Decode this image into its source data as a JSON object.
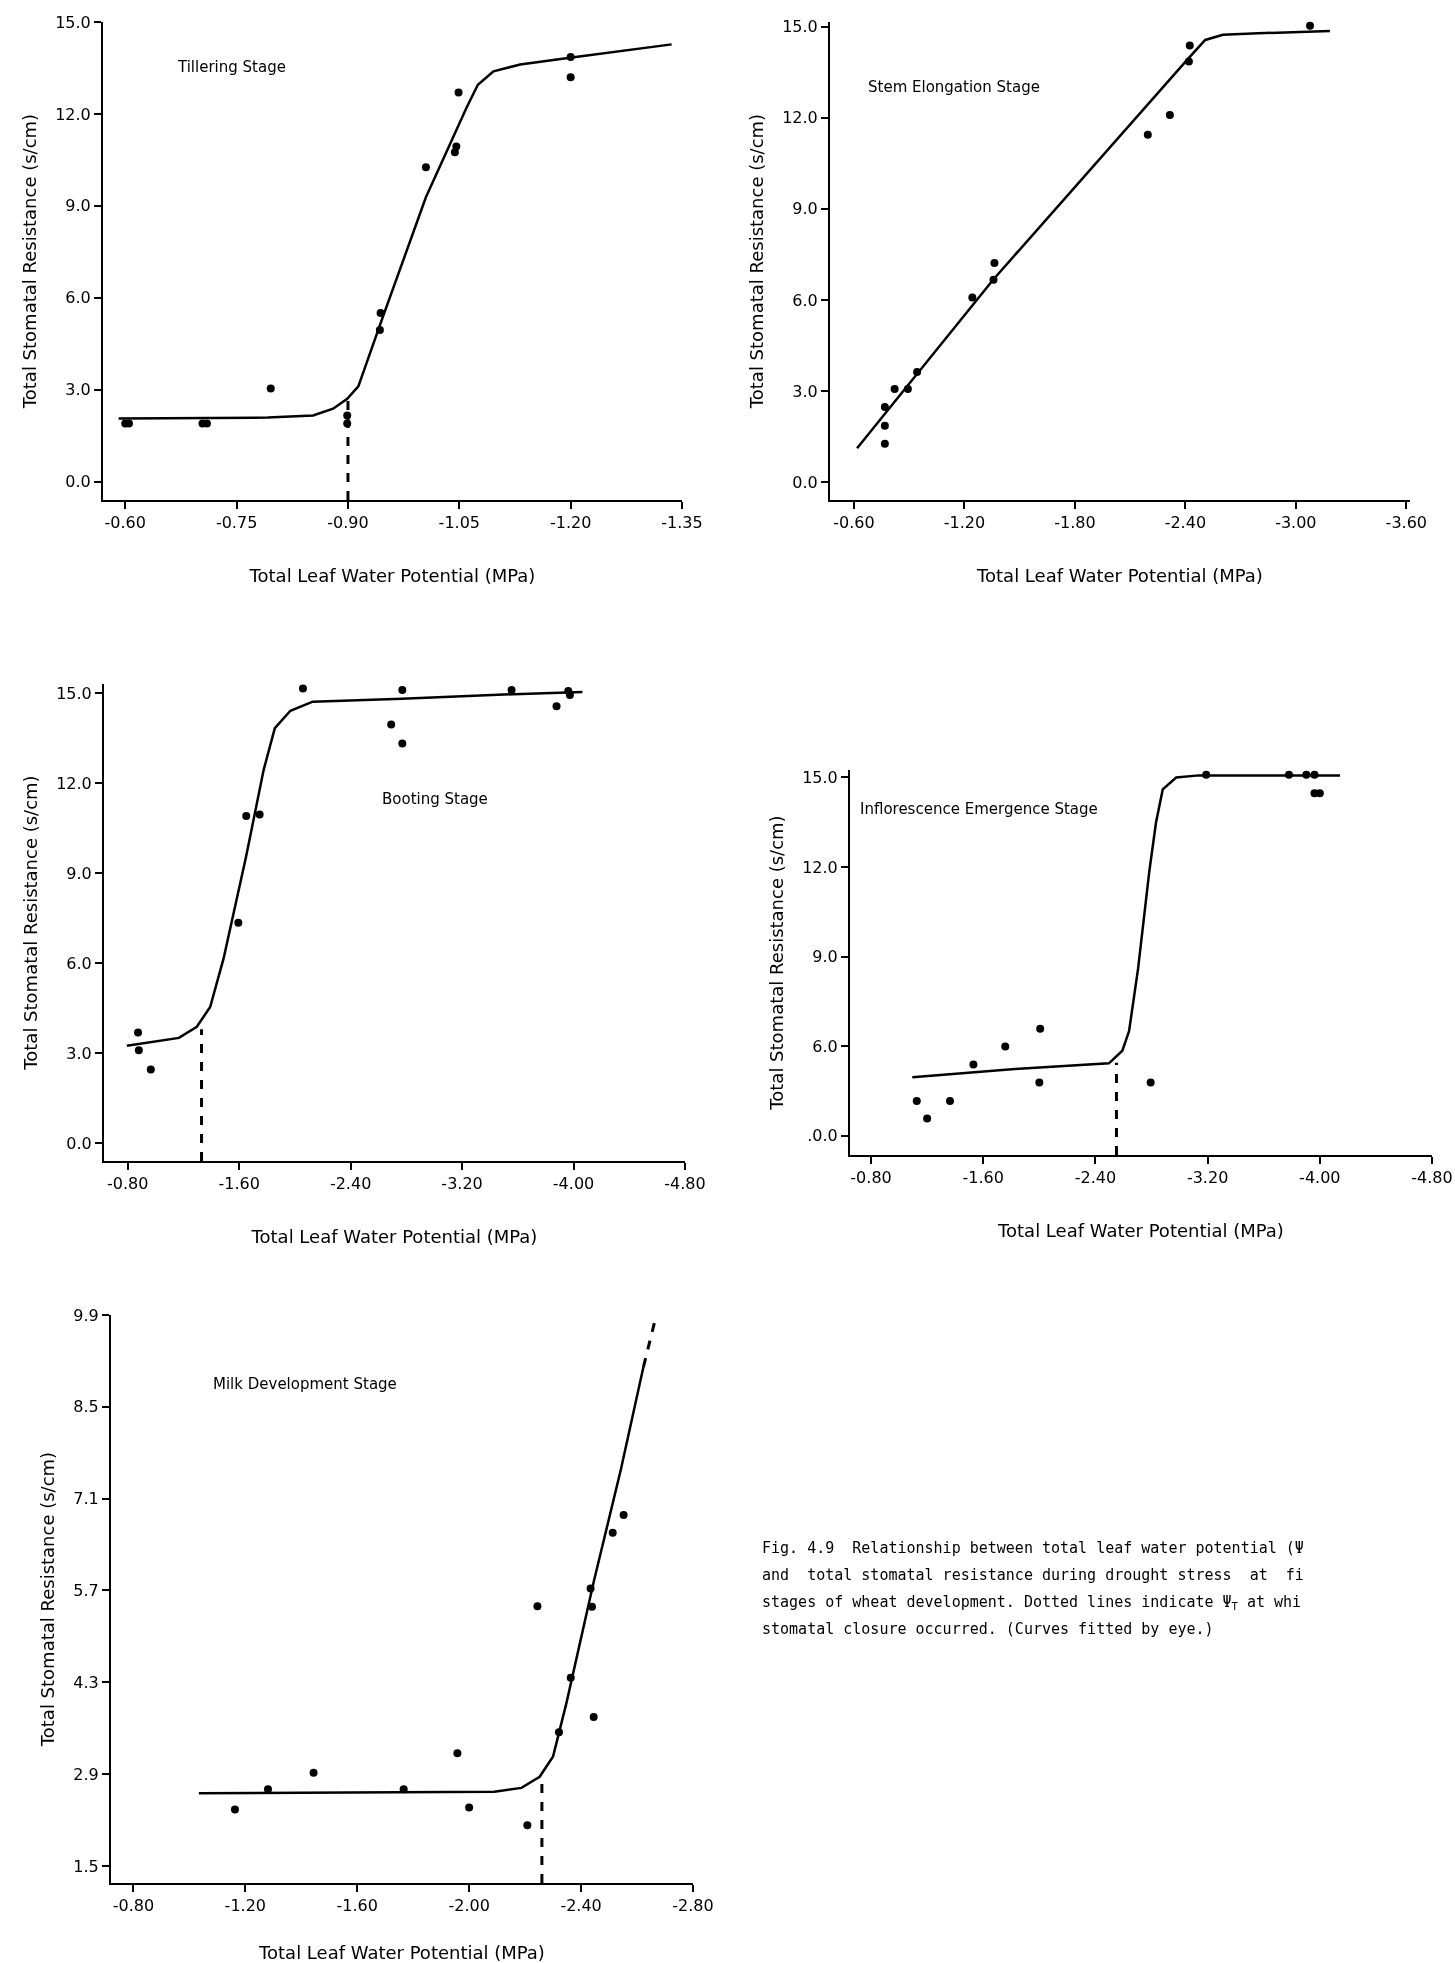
{
  "chart_data": [
    {
      "type": "scatter",
      "title": "Tillering Stage",
      "xlabel": "Total Leaf Water Potential (MPa)",
      "ylabel": "Total Stomatal Resistance (s/cm)",
      "xlim": [
        -0.57,
        -1.35
      ],
      "ylim": [
        -0.6,
        15
      ],
      "xticks": [
        {
          "value": -0.6,
          "label": "-0.60"
        },
        {
          "value": -0.75,
          "label": "-0.75"
        },
        {
          "value": -0.9,
          "label": "-0.90"
        },
        {
          "value": -1.05,
          "label": "-1.05"
        },
        {
          "value": -1.2,
          "label": "-1.20"
        },
        {
          "value": -1.35,
          "label": "-1.35"
        }
      ],
      "yticks": [
        {
          "value": 0,
          "label": "0.0"
        },
        {
          "value": 3,
          "label": "3.0"
        },
        {
          "value": 6,
          "label": "6.0"
        },
        {
          "value": 9,
          "label": "9.0"
        },
        {
          "value": 12,
          "label": "12.0"
        },
        {
          "value": 15,
          "label": "15.0"
        }
      ],
      "series": [
        {
          "marker": "circle",
          "color": "#000000",
          "x": [
            -0.6,
            -0.605,
            -0.704,
            -0.71,
            -0.796,
            -0.899,
            -0.899,
            -0.943,
            -0.944,
            -1.005,
            -1.044,
            -1.046,
            -1.049,
            -1.2,
            -1.2
          ],
          "values": [
            1.9,
            1.9,
            1.9,
            1.9,
            3.04,
            2.16,
            1.9,
            4.95,
            5.5,
            10.26,
            10.75,
            10.94,
            12.7,
            13.86,
            13.2
          ]
        },
        {
          "type": "line",
          "color": "#000000",
          "line_style": "solid",
          "x": [
            -0.591,
            -0.792,
            -0.853,
            -0.88,
            -0.899,
            -0.914,
            -0.944,
            -1.005,
            -1.06,
            -1.075,
            -1.096,
            -1.132,
            -1.199,
            -1.336
          ],
          "values": [
            2.06,
            2.09,
            2.16,
            2.38,
            2.7,
            3.11,
            5.17,
            9.28,
            12.22,
            12.95,
            13.39,
            13.61,
            13.83,
            14.27
          ]
        },
        {
          "type": "line",
          "color": "#000000",
          "line_style": "dashed",
          "x": [
            -0.9,
            -0.9
          ],
          "values": [
            -0.6,
            2.7
          ]
        }
      ]
    },
    {
      "type": "scatter",
      "title": "Stem Elongation Stage",
      "xlabel": "Total Leaf Water Potential (MPa)",
      "ylabel": "Total Stomatal Resistance (s/cm)",
      "xlim": [
        -0.47,
        -3.62
      ],
      "ylim": [
        -0.58,
        15.15
      ],
      "xticks": [
        {
          "value": -0.6,
          "label": "-0.60"
        },
        {
          "value": -1.2,
          "label": "-1.20"
        },
        {
          "value": -1.8,
          "label": "-1.80"
        },
        {
          "value": -2.4,
          "label": "-2.40"
        },
        {
          "value": -3.0,
          "label": "-3.00"
        },
        {
          "value": -3.6,
          "label": "-3.60"
        }
      ],
      "yticks": [
        {
          "value": 0,
          "label": "0.0"
        },
        {
          "value": 3,
          "label": "3.0"
        },
        {
          "value": 6,
          "label": "6.0"
        },
        {
          "value": 9,
          "label": "9.0"
        },
        {
          "value": 12,
          "label": "12.0"
        },
        {
          "value": 15,
          "label": "15.0"
        }
      ],
      "series": [
        {
          "marker": "circle",
          "color": "#000000",
          "x": [
            -0.768,
            -0.768,
            -0.768,
            -0.821,
            -0.893,
            -0.943,
            -1.243,
            -1.358,
            -1.363,
            -2.196,
            -2.316,
            -2.419,
            -2.424,
            -3.077
          ],
          "values": [
            2.48,
            1.86,
            1.27,
            3.07,
            3.07,
            3.63,
            6.08,
            6.67,
            7.22,
            11.44,
            12.09,
            13.85,
            14.38,
            15.03
          ]
        },
        {
          "type": "line",
          "color": "#000000",
          "line_style": "solid",
          "x": [
            -0.617,
            -1.356,
            -2.419,
            -2.508,
            -2.604,
            -2.796,
            -3.185
          ],
          "values": [
            1.12,
            6.67,
            13.97,
            14.56,
            14.73,
            14.78,
            14.85
          ]
        }
      ]
    },
    {
      "type": "scatter",
      "title": "Booting Stage",
      "xlabel": "Total Leaf Water Potential (MPa)",
      "ylabel": "Total Stomatal Resistance (s/cm)",
      "xlim": [
        -0.63,
        -4.8
      ],
      "ylim": [
        -0.59,
        15.3
      ],
      "xticks": [
        {
          "value": -0.8,
          "label": "-0.80"
        },
        {
          "value": -1.6,
          "label": "-1.60"
        },
        {
          "value": -2.4,
          "label": "-2.40"
        },
        {
          "value": -3.2,
          "label": "-3.20"
        },
        {
          "value": -4.0,
          "label": "-4.00"
        },
        {
          "value": -4.8,
          "label": "-4.80"
        }
      ],
      "yticks": [
        {
          "value": 0,
          "label": "0.0"
        },
        {
          "value": 3,
          "label": "3.0"
        },
        {
          "value": 6,
          "label": "6.0"
        },
        {
          "value": 9,
          "label": "9.0"
        },
        {
          "value": 12,
          "label": "12.0"
        },
        {
          "value": 15,
          "label": "15.0"
        }
      ],
      "series": [
        {
          "marker": "circle",
          "color": "#000000",
          "x": [
            -0.874,
            -0.88,
            -0.966,
            -1.594,
            -1.651,
            -1.747,
            -2.058,
            -2.691,
            -2.771,
            -2.771,
            -3.555,
            -3.878,
            -3.962,
            -3.974
          ],
          "values": [
            3.69,
            3.1,
            2.46,
            7.35,
            10.9,
            10.95,
            15.15,
            13.95,
            15.1,
            13.32,
            15.1,
            14.56,
            15.07,
            14.93
          ]
        },
        {
          "type": "line",
          "color": "#000000",
          "line_style": "solid",
          "x": [
            -0.794,
            -1.168,
            -1.296,
            -1.392,
            -1.488,
            -1.648,
            -1.776,
            -1.856,
            -1.968,
            -2.128,
            -2.768,
            -3.568,
            -4.064
          ],
          "values": [
            3.25,
            3.51,
            3.88,
            4.54,
            6.15,
            9.51,
            12.44,
            13.83,
            14.41,
            14.71,
            14.81,
            14.96,
            15.03
          ]
        },
        {
          "type": "line",
          "color": "#000000",
          "line_style": "dashed",
          "x": [
            -1.33,
            -1.33
          ],
          "values": [
            -0.59,
            3.8
          ]
        }
      ]
    },
    {
      "type": "scatter",
      "title": "Inflorescence Emergence Stage",
      "xlabel": "Total Leaf Water Potential (MPa)",
      "ylabel": "Total Stomatal Resistance (s/cm)",
      "xlim": [
        -0.65,
        -4.8
      ],
      "ylim": [
        2.36,
        15.25
      ],
      "xticks": [
        {
          "value": -0.8,
          "label": "-0.80"
        },
        {
          "value": -1.6,
          "label": "-1.60"
        },
        {
          "value": -2.4,
          "label": "-2.40"
        },
        {
          "value": -3.2,
          "label": "-3.20"
        },
        {
          "value": -4.0,
          "label": "-4.00"
        },
        {
          "value": -4.8,
          "label": "-4.80"
        }
      ],
      "yticks": [
        {
          "value": 3,
          "label": ".0.0"
        },
        {
          "value": 6,
          "label": "6.0"
        },
        {
          "value": 9,
          "label": "9.0"
        },
        {
          "value": 12,
          "label": "12.0"
        },
        {
          "value": 15,
          "label": "15.0"
        }
      ],
      "series": [
        {
          "marker": "circle",
          "color": "#000000",
          "x": [
            -1.126,
            -1.2,
            -1.363,
            -1.53,
            -1.757,
            -2.006,
            -2.0,
            -2.794,
            -3.19,
            -3.78,
            -3.904,
            -3.962,
            -3.962,
            -4.0
          ],
          "values": [
            4.17,
            3.58,
            4.17,
            5.39,
            5.99,
            6.59,
            4.79,
            4.79,
            15.09,
            15.09,
            15.09,
            15.09,
            14.47,
            14.47
          ]
        },
        {
          "type": "line",
          "color": "#000000",
          "line_style": "solid",
          "x": [
            -1.094,
            -1.856,
            -2.496,
            -2.592,
            -2.64,
            -2.704,
            -2.784,
            -2.832,
            -2.88,
            -2.976,
            -3.136,
            -4.144
          ],
          "values": [
            4.96,
            5.25,
            5.43,
            5.85,
            6.51,
            8.59,
            11.85,
            13.49,
            14.6,
            15.0,
            15.07,
            15.07
          ]
        },
        {
          "type": "line",
          "color": "#000000",
          "line_style": "dashed",
          "x": [
            -2.55,
            -2.55
          ],
          "values": [
            2.36,
            5.45
          ]
        }
      ]
    },
    {
      "type": "scatter",
      "title": "Milk Development Stage",
      "xlabel": "Total Leaf Water Potential (MPa)",
      "ylabel": "Total Stomatal Resistance (s/cm)",
      "xlim": [
        -0.72,
        -2.8
      ],
      "ylim": [
        1.24,
        9.9
      ],
      "xticks": [
        {
          "value": -0.8,
          "label": "-0.80"
        },
        {
          "value": -1.2,
          "label": "-1.20"
        },
        {
          "value": -1.6,
          "label": "-1.60"
        },
        {
          "value": -2.0,
          "label": "-2.00"
        },
        {
          "value": -2.4,
          "label": "-2.40"
        },
        {
          "value": -2.8,
          "label": "-2.80"
        }
      ],
      "yticks": [
        1.5,
        2.9,
        4.3,
        5.7,
        7.1,
        8.5,
        9.9
      ],
      "series": [
        {
          "marker": "circle",
          "color": "#000000",
          "x": [
            -1.163,
            -1.281,
            -1.444,
            -1.766,
            -1.958,
            -2.0,
            -2.208,
            -2.244,
            -2.321,
            -2.363,
            -2.434,
            -2.439,
            -2.445,
            -2.513,
            -2.552
          ],
          "values": [
            2.36,
            2.67,
            2.92,
            2.67,
            3.22,
            2.39,
            2.12,
            5.46,
            3.54,
            4.37,
            5.73,
            5.45,
            3.77,
            6.58,
            6.85
          ]
        },
        {
          "type": "line",
          "color": "#000000",
          "line_style": "solid",
          "x": [
            -1.034,
            -2.09,
            -2.187,
            -2.252,
            -2.3,
            -2.348,
            -2.445,
            -2.542,
            -2.623
          ],
          "values": [
            2.61,
            2.63,
            2.69,
            2.86,
            3.17,
            3.99,
            5.83,
            7.54,
            9.11
          ]
        },
        {
          "type": "line",
          "color": "#000000",
          "line_style": "dashed",
          "x": [
            -2.623,
            -2.669
          ],
          "values": [
            9.11,
            9.9
          ]
        },
        {
          "type": "line",
          "color": "#000000",
          "line_style": "dashed",
          "x": [
            -2.26,
            -2.26
          ],
          "values": [
            1.24,
            2.85
          ]
        }
      ],
      "annotations": [
        "Fig. 4.9  Relationship between total leaf water potential (Ψ",
        "and  total stomatal resistance during drought stress  at  fi",
        "stages of wheat development. Dotted lines indicate Ψ$_{T}$ at whi",
        "stomatal closure occurred. (Curves fitted by eye.)"
      ]
    }
  ]
}
